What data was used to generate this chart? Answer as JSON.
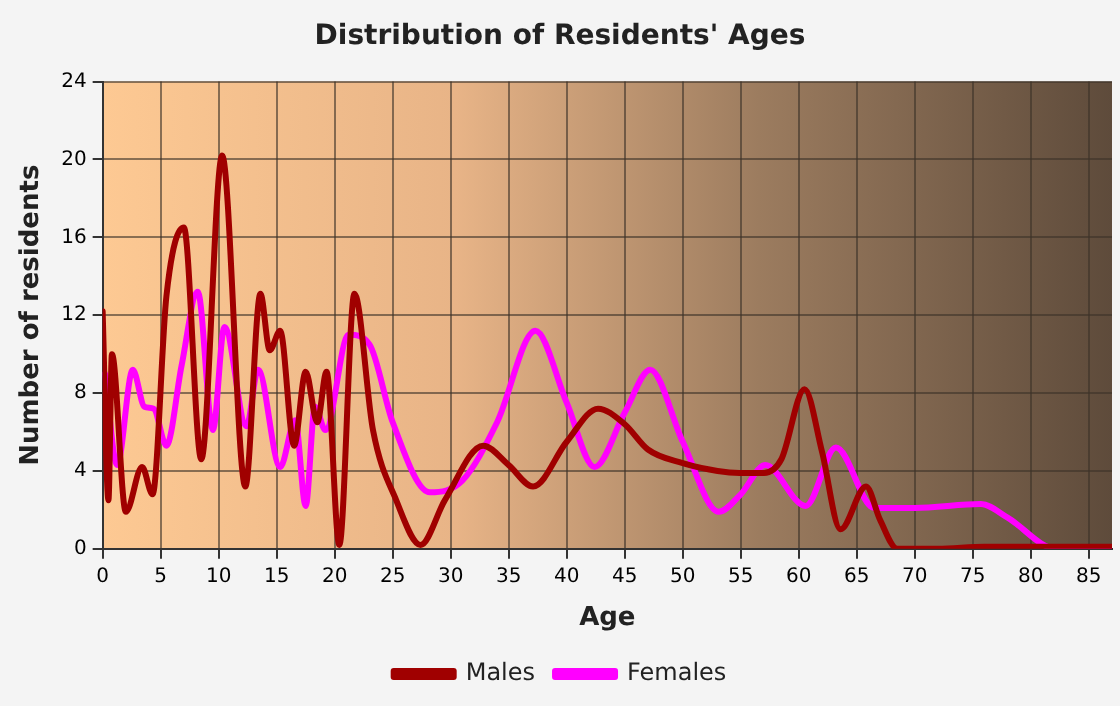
{
  "chart_data": {
    "type": "line",
    "title": "Distribution of Residents' Ages",
    "xlabel": "Age",
    "ylabel": "Number of residents",
    "xlim": [
      0,
      87
    ],
    "xticks": [
      0,
      5,
      10,
      15,
      20,
      25,
      30,
      35,
      40,
      45,
      50,
      55,
      60,
      65,
      70,
      75,
      80,
      85
    ],
    "ylim": [
      0,
      24
    ],
    "yticks": [
      0,
      4,
      8,
      12,
      16,
      20,
      24
    ],
    "grid": true,
    "legend": "bottom",
    "marker": "none",
    "line_style": "solid",
    "series": [
      {
        "name": "Males",
        "color": "#a00000",
        "x": [
          0,
          0.5,
          0.8,
          2,
          3.4,
          4.3,
          5.5,
          7,
          8.5,
          10.3,
          12.3,
          13.6,
          14.4,
          15.3,
          16.5,
          17.5,
          18.5,
          19.3,
          20.4,
          21.7,
          23.3,
          25.3,
          27.4,
          29.5,
          32.8,
          35,
          37.1,
          40,
          42.7,
          45,
          47,
          50,
          53,
          54.9,
          57,
          58.5,
          60.5,
          62,
          63.6,
          65.8,
          67,
          68.5,
          72,
          76,
          87
        ],
        "values": [
          12.2,
          2.5,
          10,
          1.9,
          4.2,
          2.8,
          13,
          16.5,
          4.6,
          20.2,
          3.2,
          13.1,
          10.2,
          11.2,
          5.3,
          9.1,
          6.5,
          9.1,
          0.2,
          13.1,
          6.1,
          2.5,
          0.2,
          2.5,
          5.3,
          4.3,
          3.2,
          5.5,
          7.2,
          6.4,
          5.1,
          4.4,
          4,
          3.9,
          3.9,
          4.6,
          8.2,
          5,
          1,
          3.2,
          1.5,
          0,
          0,
          0.1,
          0.1
        ]
      },
      {
        "name": "Females",
        "color": "#ff00ff",
        "x": [
          0.2,
          1.25,
          2.6,
          3.6,
          4.4,
          5.5,
          6.8,
          8.2,
          9.5,
          10.5,
          12.4,
          13.4,
          15.3,
          16.6,
          17.5,
          18.3,
          19.2,
          21.2,
          23,
          25,
          28.2,
          31,
          34,
          37.3,
          40,
          42.4,
          45,
          47.2,
          50,
          53.1,
          55,
          57.1,
          60.6,
          63.2,
          66.5,
          70,
          75.7,
          78,
          82.2,
          87
        ],
        "values": [
          9,
          4.3,
          9.2,
          7.3,
          7.2,
          5.3,
          9.4,
          13.2,
          6.1,
          11.4,
          6.3,
          9.2,
          4.2,
          6.6,
          2.2,
          7.3,
          6.1,
          11,
          10.5,
          6.5,
          2.9,
          3.5,
          6.5,
          11.2,
          7.5,
          4.2,
          7,
          9.2,
          5.5,
          1.9,
          2.8,
          4.3,
          2.2,
          5.2,
          2.1,
          2.1,
          2.3,
          1.6,
          0,
          0
        ]
      }
    ]
  }
}
